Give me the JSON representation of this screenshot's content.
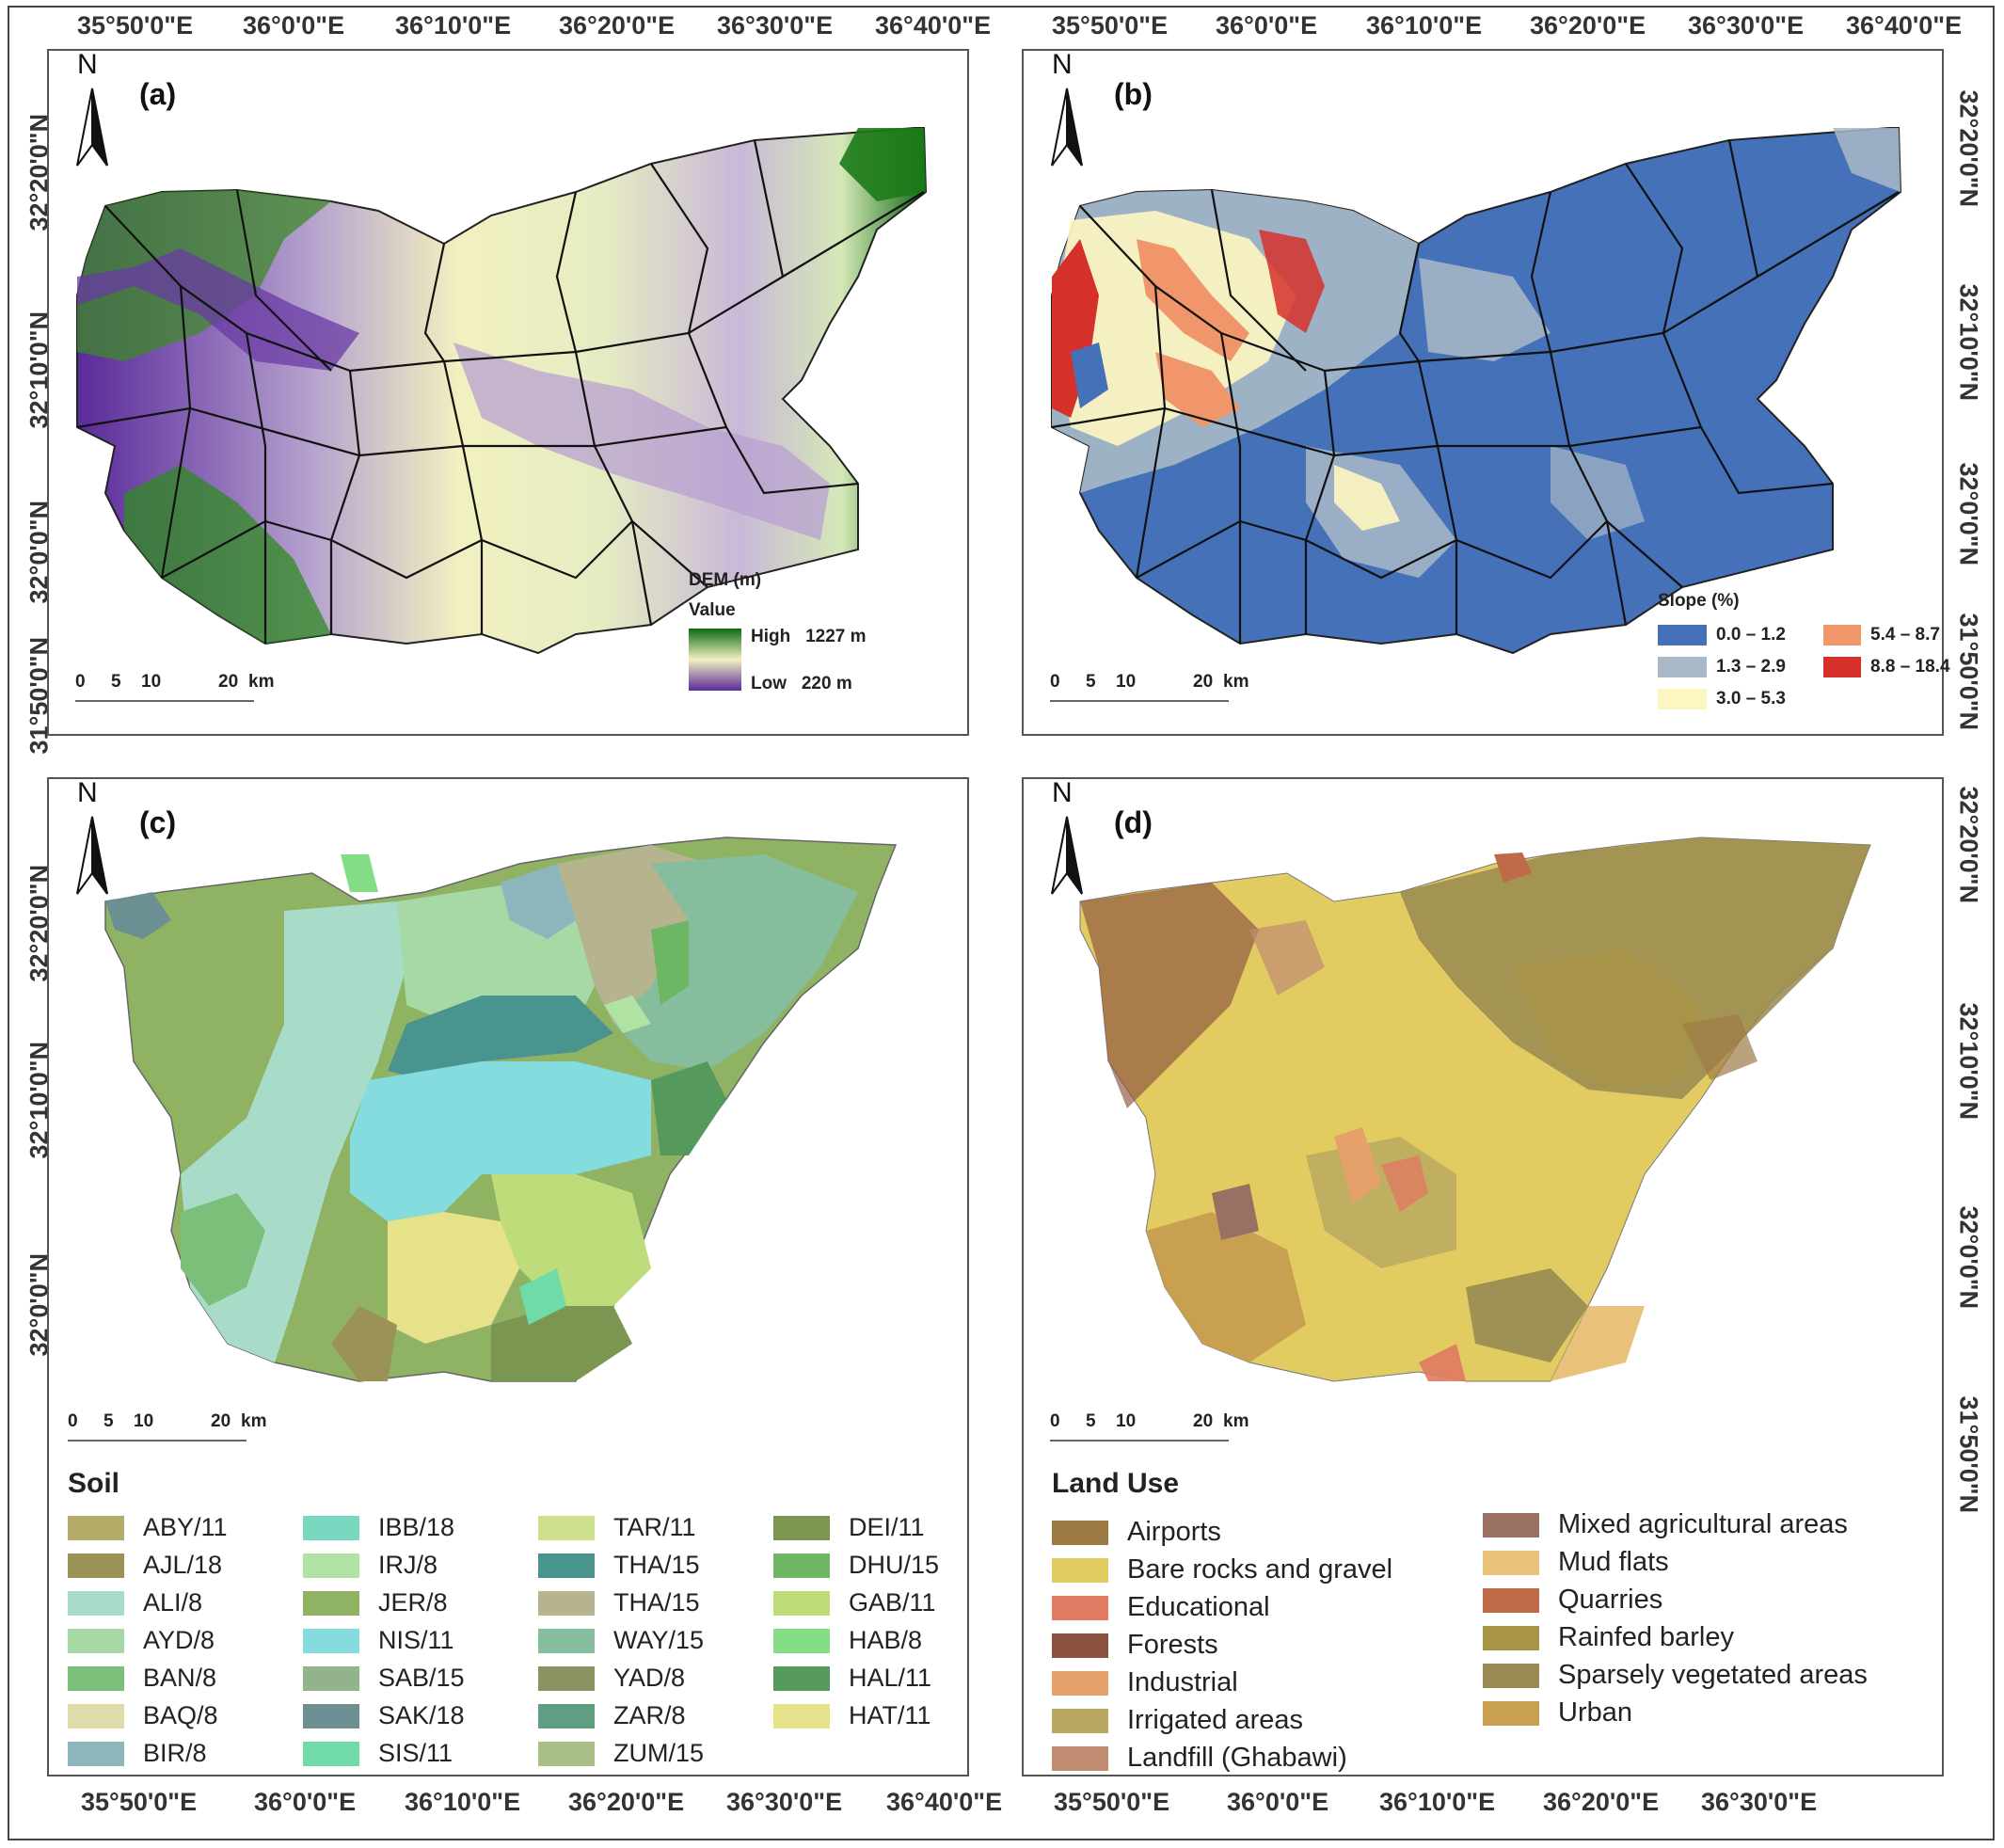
{
  "top_lon_labels": [
    "35°50'0\"E",
    "36°0'0\"E",
    "36°10'0\"E",
    "36°20'0\"E",
    "36°30'0\"E",
    "36°40'0\"E"
  ],
  "top_lon_labels_b": [
    "35°50'0\"E",
    "36°0'0\"E",
    "36°10'0\"E",
    "36°20'0\"E",
    "36°30'0\"E",
    "36°40'0\"E"
  ],
  "bottom_lon_labels_c": [
    "35°50'0\"E",
    "36°0'0\"E",
    "36°10'0\"E",
    "36°20'0\"E",
    "36°30'0\"E",
    "36°40'0\"E"
  ],
  "bottom_lon_labels_d": [
    "35°50'0\"E",
    "36°0'0\"E",
    "36°10'0\"E",
    "36°20'0\"E",
    "36°30'0\"E"
  ],
  "left_lat_labels_a": [
    "32°20'0\"N",
    "32°10'0\"N",
    "32°0'0\"N",
    "31°50'0\"N"
  ],
  "right_lat_labels_b": [
    "32°20'0\"N",
    "32°10'0\"N",
    "32°0'0\"N",
    "31°50'0\"N"
  ],
  "left_lat_labels_c": [
    "32°20'0\"N",
    "32°10'0\"N",
    "32°0'0\"N"
  ],
  "right_lat_labels_d": [
    "32°20'0\"N",
    "32°10'0\"N",
    "32°0'0\"N",
    "31°50'0\"N"
  ],
  "north": "N",
  "panels": {
    "a": {
      "label": "(a)"
    },
    "b": {
      "label": "(b)"
    },
    "c": {
      "label": "(c)"
    },
    "d": {
      "label": "(d)"
    }
  },
  "scale": {
    "ticks": [
      "0",
      "5",
      "10",
      "20"
    ],
    "unit": "km"
  },
  "dem_legend": {
    "title": "DEM (m)",
    "subtitle": "Value",
    "high_label": "High",
    "high_value": "1227 m",
    "low_label": "Low",
    "low_value": "220 m",
    "colors": [
      "#0f6a12",
      "#f2f0c0",
      "#5a2a9a"
    ]
  },
  "slope_legend": {
    "title": "Slope  (%)",
    "items": [
      {
        "label": "0.0 – 1.2",
        "color": "#4471b8"
      },
      {
        "label": "5.4 – 8.7",
        "color": "#f0966a"
      },
      {
        "label": "1.3 – 2.9",
        "color": "#a9b9c7"
      },
      {
        "label": "8.8 – 18.4",
        "color": "#d6302a"
      },
      {
        "label": "3.0 – 5.3",
        "color": "#fdf6c0"
      }
    ]
  },
  "soil_legend": {
    "title": "Soil",
    "items": [
      {
        "label": "ABY/11",
        "color": "#b4ab68"
      },
      {
        "label": "AJL/18",
        "color": "#9a9256"
      },
      {
        "label": "ALI/8",
        "color": "#a8dcc8"
      },
      {
        "label": "AYD/8",
        "color": "#a6d9a6"
      },
      {
        "label": "BAN/8",
        "color": "#7cbf7a"
      },
      {
        "label": "BAQ/8",
        "color": "#dedcaa"
      },
      {
        "label": "BIR/8",
        "color": "#8cb6bc"
      },
      {
        "label": "IBB/18",
        "color": "#7ad8c0"
      },
      {
        "label": "IRJ/8",
        "color": "#b0e2a4"
      },
      {
        "label": "JER/8",
        "color": "#8fb263"
      },
      {
        "label": "NIS/11",
        "color": "#84dcdf"
      },
      {
        "label": "SAB/15",
        "color": "#93b38c"
      },
      {
        "label": "SAK/18",
        "color": "#6b8f92"
      },
      {
        "label": "SIS/11",
        "color": "#6edba8"
      },
      {
        "label": "TAR/11",
        "color": "#cde08c"
      },
      {
        "label": "THA/15",
        "color": "#4a9490"
      },
      {
        "label": "THA/15",
        "color": "#b6b48e"
      },
      {
        "label": "WAY/15",
        "color": "#86bd9c"
      },
      {
        "label": "YAD/8",
        "color": "#8c9262"
      },
      {
        "label": "ZAR/8",
        "color": "#5f9e80"
      },
      {
        "label": "ZUM/15",
        "color": "#a8c088"
      },
      {
        "label": "DEI/11",
        "color": "#7a9650"
      },
      {
        "label": "DHU/15",
        "color": "#6cb664"
      },
      {
        "label": "GAB/11",
        "color": "#bedc7a"
      },
      {
        "label": "HAB/8",
        "color": "#84dc84"
      },
      {
        "label": "HAL/11",
        "color": "#559a5c"
      },
      {
        "label": "HAT/11",
        "color": "#e6e28a"
      }
    ]
  },
  "landuse_legend": {
    "title": "Land Use",
    "items": [
      {
        "label": "Airports",
        "color": "#9c7a44"
      },
      {
        "label": "Bare rocks and gravel",
        "color": "#e2cc62"
      },
      {
        "label": "Educational",
        "color": "#e07a62"
      },
      {
        "label": "Forests",
        "color": "#8c5240"
      },
      {
        "label": "Industrial",
        "color": "#e6a06a"
      },
      {
        "label": "Irrigated areas",
        "color": "#b8a862"
      },
      {
        "label": "Landfill (Ghabawi)",
        "color": "#c08c72"
      },
      {
        "label": "Mixed agricultural areas",
        "color": "#9a7062"
      },
      {
        "label": "Mud flats",
        "color": "#e8c27a"
      },
      {
        "label": "Quarries",
        "color": "#c06a4a"
      },
      {
        "label": "Rainfed barley",
        "color": "#a89446"
      },
      {
        "label": "Sparsely vegetated areas",
        "color": "#988a52"
      },
      {
        "label": "Urban",
        "color": "#c8a050"
      }
    ]
  }
}
